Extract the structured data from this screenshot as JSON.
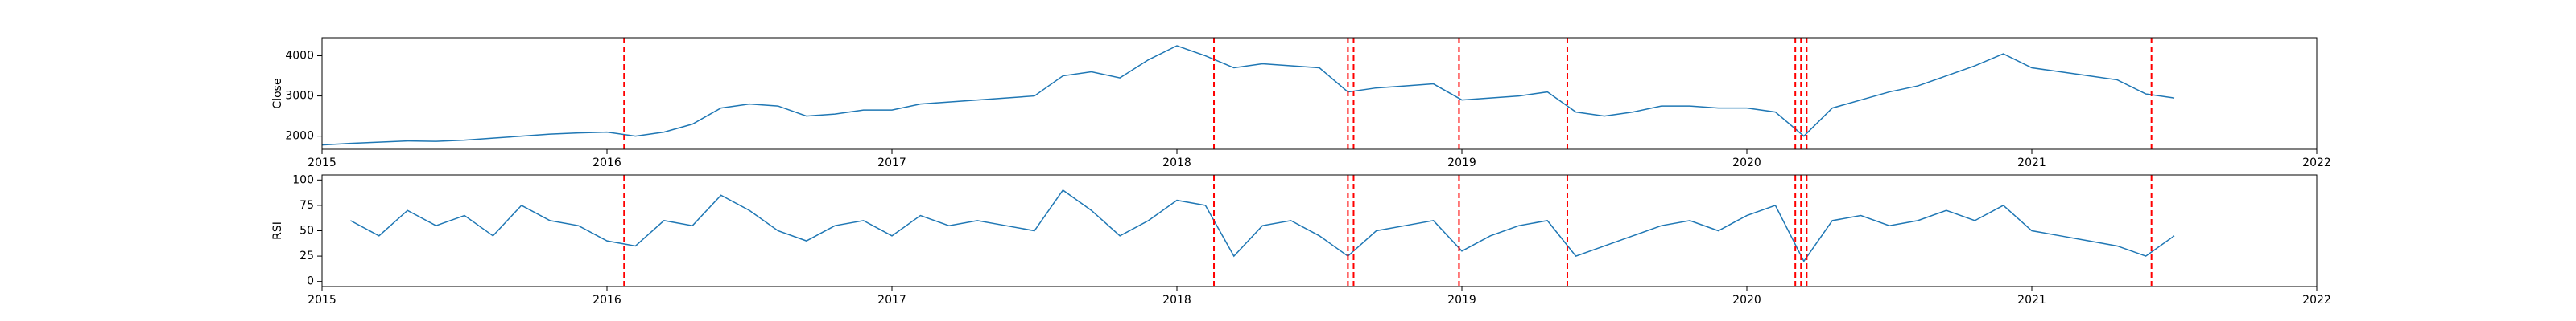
{
  "chart_data": [
    {
      "type": "line",
      "ylabel": "Close",
      "x": [
        2015.0,
        2015.1,
        2015.2,
        2015.3,
        2015.4,
        2015.5,
        2015.6,
        2015.7,
        2015.8,
        2015.9,
        2016.0,
        2016.1,
        2016.2,
        2016.3,
        2016.4,
        2016.5,
        2016.6,
        2016.7,
        2016.8,
        2016.9,
        2017.0,
        2017.1,
        2017.2,
        2017.3,
        2017.4,
        2017.5,
        2017.6,
        2017.7,
        2017.8,
        2017.9,
        2018.0,
        2018.1,
        2018.2,
        2018.3,
        2018.4,
        2018.5,
        2018.6,
        2018.7,
        2018.8,
        2018.9,
        2019.0,
        2019.1,
        2019.2,
        2019.3,
        2019.4,
        2019.5,
        2019.6,
        2019.7,
        2019.8,
        2019.9,
        2020.0,
        2020.1,
        2020.2,
        2020.3,
        2020.4,
        2020.5,
        2020.6,
        2020.7,
        2020.8,
        2020.9,
        2021.0,
        2021.1,
        2021.2,
        2021.3,
        2021.4,
        2021.5
      ],
      "series": [
        {
          "color": "#1f77b4",
          "values": [
            1780,
            1820,
            1850,
            1880,
            1870,
            1900,
            1950,
            2000,
            2050,
            2080,
            2100,
            2000,
            2100,
            2300,
            2700,
            2800,
            2750,
            2500,
            2550,
            2650,
            2650,
            2800,
            2850,
            2900,
            2950,
            3000,
            3500,
            3600,
            3450,
            3900,
            4250,
            4000,
            3700,
            3800,
            3750,
            3700,
            3100,
            3200,
            3250,
            3300,
            2900,
            2950,
            3000,
            3100,
            2600,
            2500,
            2600,
            2750,
            2750,
            2700,
            2700,
            2600,
            2000,
            2700,
            2900,
            3100,
            3250,
            3500,
            3750,
            4050,
            3700,
            3600,
            3500,
            3400,
            3050,
            2950
          ]
        }
      ],
      "xlim": [
        2015,
        2022
      ],
      "xticks": [
        2015,
        2016,
        2017,
        2018,
        2019,
        2020,
        2021,
        2022
      ],
      "ylim": [
        1673,
        4450
      ],
      "yticks": [
        2000,
        3000,
        4000
      ],
      "vlines": [
        2016.06,
        2018.13,
        2018.6,
        2018.62,
        2018.99,
        2019.37,
        2020.17,
        2020.19,
        2020.21,
        2021.42
      ],
      "vline_color": "#ff0000"
    },
    {
      "type": "line",
      "ylabel": "RSI",
      "x": [
        2015.0,
        2015.1,
        2015.2,
        2015.3,
        2015.4,
        2015.5,
        2015.6,
        2015.7,
        2015.8,
        2015.9,
        2016.0,
        2016.1,
        2016.2,
        2016.3,
        2016.4,
        2016.5,
        2016.6,
        2016.7,
        2016.8,
        2016.9,
        2017.0,
        2017.1,
        2017.2,
        2017.3,
        2017.4,
        2017.5,
        2017.6,
        2017.7,
        2017.8,
        2017.9,
        2018.0,
        2018.1,
        2018.2,
        2018.3,
        2018.4,
        2018.5,
        2018.6,
        2018.7,
        2018.8,
        2018.9,
        2019.0,
        2019.1,
        2019.2,
        2019.3,
        2019.4,
        2019.5,
        2019.6,
        2019.7,
        2019.8,
        2019.9,
        2020.0,
        2020.1,
        2020.2,
        2020.3,
        2020.4,
        2020.5,
        2020.6,
        2020.7,
        2020.8,
        2020.9,
        2021.0,
        2021.1,
        2021.2,
        2021.3,
        2021.4,
        2021.5
      ],
      "series": [
        {
          "color": "#1f77b4",
          "values": [
            null,
            60,
            45,
            70,
            55,
            65,
            45,
            75,
            60,
            55,
            40,
            35,
            60,
            55,
            85,
            70,
            50,
            40,
            55,
            60,
            45,
            65,
            55,
            60,
            55,
            50,
            90,
            70,
            45,
            60,
            80,
            75,
            25,
            55,
            60,
            45,
            25,
            50,
            55,
            60,
            30,
            45,
            55,
            60,
            25,
            35,
            45,
            55,
            60,
            50,
            65,
            75,
            20,
            60,
            65,
            55,
            60,
            70,
            60,
            75,
            50,
            45,
            40,
            35,
            25,
            45
          ]
        }
      ],
      "xlim": [
        2015,
        2022
      ],
      "xticks": [
        2015,
        2016,
        2017,
        2018,
        2019,
        2020,
        2021,
        2022
      ],
      "ylim": [
        -5,
        105
      ],
      "yticks": [
        0,
        25,
        50,
        75,
        100
      ],
      "vlines": [
        2016.06,
        2018.13,
        2018.6,
        2018.62,
        2018.99,
        2019.37,
        2020.17,
        2020.19,
        2020.21,
        2021.42
      ],
      "vline_color": "#ff0000"
    }
  ]
}
